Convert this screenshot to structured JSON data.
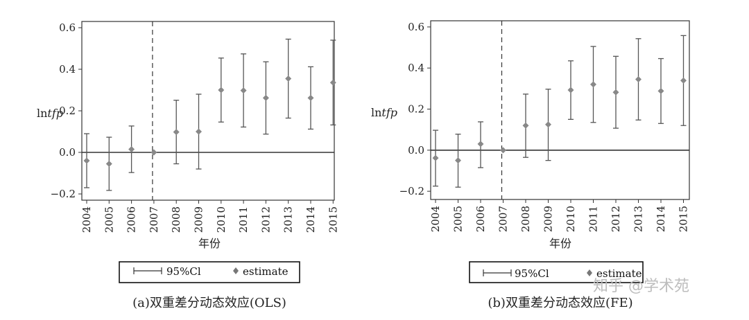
{
  "charts": [
    {
      "chart_data": {
        "type": "scatter",
        "title": "",
        "xlabel": "年份",
        "ylabel": "lntfp",
        "ylabel_prefix": "ln",
        "ylabel_italic": "tfp",
        "categories": [
          "2004",
          "2005",
          "2006",
          "2007",
          "2008",
          "2009",
          "2010",
          "2011",
          "2012",
          "2013",
          "2014",
          "2015"
        ],
        "yticks": [
          -0.2,
          0.0,
          0.2,
          0.4,
          0.6
        ],
        "ytick_labels": [
          "-0.2",
          "0.0",
          "0.2",
          "0.4",
          "0.6"
        ],
        "ylim": [
          -0.23,
          0.63
        ],
        "reference_line_y": 0.0,
        "reference_vline_x": "2007",
        "series": [
          {
            "name": "estimate",
            "values": [
              -0.04,
              -0.055,
              0.015,
              0.0,
              0.098,
              0.1,
              0.3,
              0.298,
              0.262,
              0.355,
              0.262,
              0.336
            ]
          },
          {
            "name": "95%Cl",
            "lower": [
              -0.17,
              -0.183,
              -0.097,
              0.0,
              -0.055,
              -0.08,
              0.146,
              0.122,
              0.088,
              0.165,
              0.112,
              0.132
            ],
            "upper": [
              0.09,
              0.073,
              0.127,
              0.0,
              0.251,
              0.28,
              0.454,
              0.474,
              0.436,
              0.545,
              0.412,
              0.54
            ]
          }
        ],
        "legend": {
          "ci_label": "95%Cl",
          "estimate_label": "estimate",
          "position": "bottom"
        }
      },
      "caption": "(a)双重差分动态效应(OLS)"
    },
    {
      "chart_data": {
        "type": "scatter",
        "title": "",
        "xlabel": "年份",
        "ylabel": "lntfp",
        "ylabel_prefix": "ln",
        "ylabel_italic": "tfp",
        "categories": [
          "2004",
          "2005",
          "2006",
          "2007",
          "2008",
          "2009",
          "2010",
          "2011",
          "2012",
          "2013",
          "2014",
          "2015"
        ],
        "yticks": [
          -0.2,
          0.0,
          0.2,
          0.4,
          0.6
        ],
        "ytick_labels": [
          "-0.2",
          "0.0",
          "0.2",
          "0.4",
          "0.6"
        ],
        "ylim": [
          -0.24,
          0.63
        ],
        "reference_line_y": 0.0,
        "reference_vline_x": "2007",
        "series": [
          {
            "name": "estimate",
            "values": [
              -0.038,
              -0.05,
              0.03,
              0.0,
              0.12,
              0.125,
              0.293,
              0.32,
              0.282,
              0.345,
              0.288,
              0.339
            ]
          },
          {
            "name": "95%Cl",
            "lower": [
              -0.175,
              -0.18,
              -0.085,
              0.0,
              -0.035,
              -0.05,
              0.15,
              0.135,
              0.107,
              0.147,
              0.13,
              0.12
            ],
            "upper": [
              0.097,
              0.078,
              0.138,
              0.0,
              0.273,
              0.297,
              0.435,
              0.505,
              0.457,
              0.543,
              0.446,
              0.558
            ]
          }
        ],
        "legend": {
          "ci_label": "95%Cl",
          "estimate_label": "estimate",
          "position": "bottom"
        }
      },
      "caption": "(b)双重差分动态效应(FE)"
    }
  ],
  "watermark": "知乎 @学术苑",
  "colors": {
    "error_bar": "#555555",
    "marker": "#888888",
    "axis": "#333333"
  }
}
